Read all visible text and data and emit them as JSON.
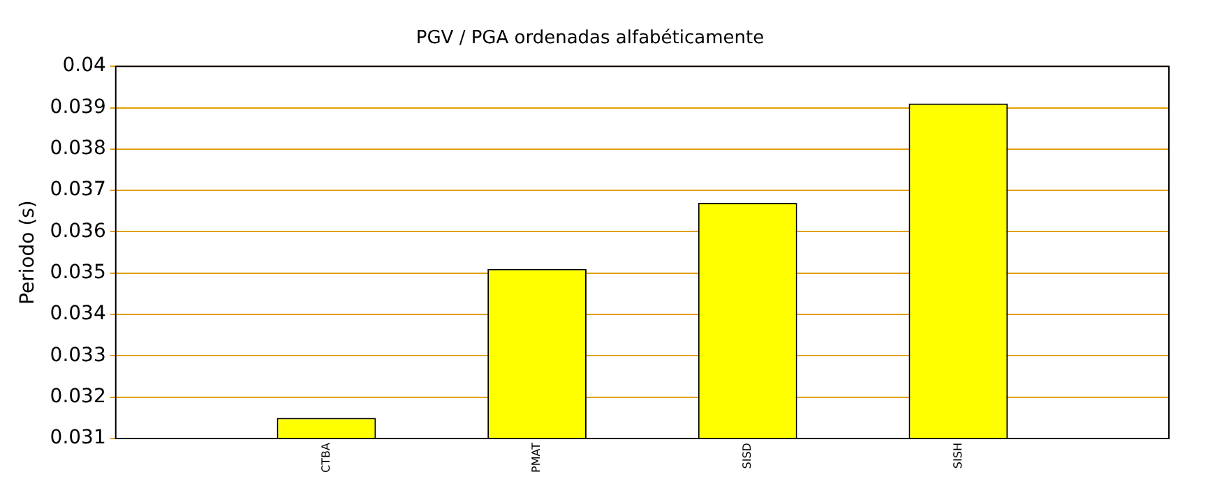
{
  "chart_data": {
    "type": "bar",
    "title": "PGV / PGA ordenadas alfabéticamente",
    "ylabel": "Periodo (s)",
    "categories": [
      "CTBA",
      "PMAT",
      "SISD",
      "SISH"
    ],
    "values": [
      0.0315,
      0.0351,
      0.0367,
      0.0391
    ],
    "color": "#ffff00",
    "ylim": [
      0.031,
      0.04
    ],
    "yticks": [
      0.031,
      0.032,
      0.033,
      0.034,
      0.035,
      0.036,
      0.037,
      0.038,
      0.039,
      0.04
    ],
    "grid": "y",
    "legend": false
  }
}
